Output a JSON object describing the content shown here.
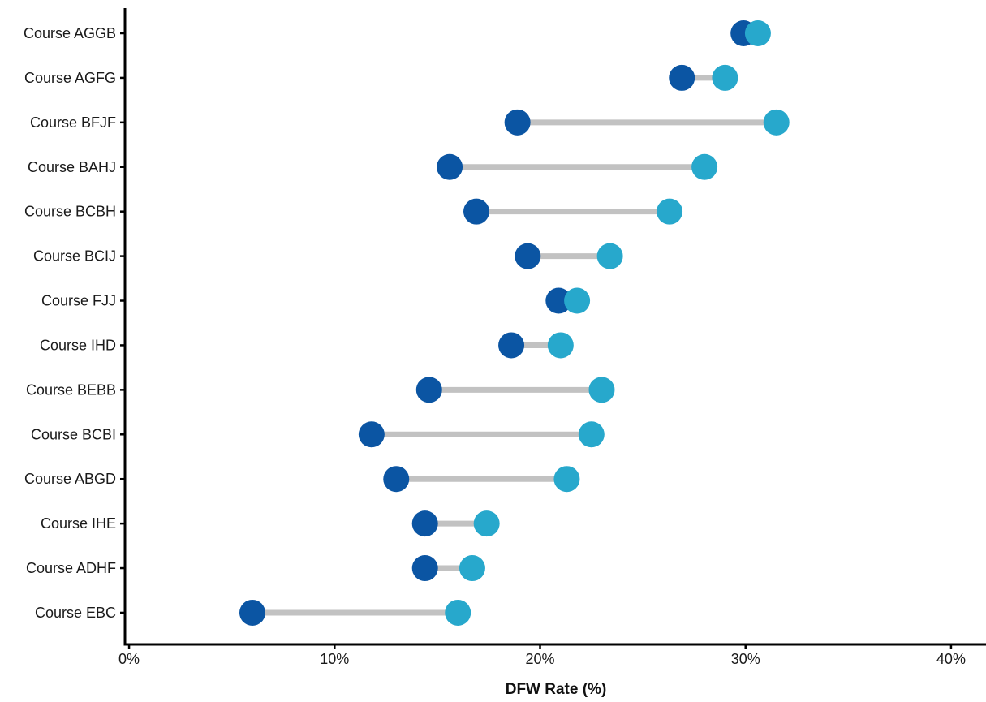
{
  "chart_data": {
    "type": "dumbbell",
    "xlabel": "DFW Rate (%)",
    "ylabel": "",
    "xlim": [
      -0.2,
      41.7
    ],
    "x_ticks": [
      0,
      10,
      20,
      30,
      40
    ],
    "x_tick_labels": [
      "0%",
      "10%",
      "20%",
      "30%",
      "40%"
    ],
    "grid": false,
    "legend": "none",
    "categories": [
      "Course AGGB",
      "Course AGFG",
      "Course BFJF",
      "Course BAHJ",
      "Course BCBH",
      "Course BCIJ",
      "Course FJJ",
      "Course IHD",
      "Course BEBB",
      "Course BCBI",
      "Course ABGD",
      "Course IHE",
      "Course ADHF",
      "Course EBC"
    ],
    "series": [
      {
        "values": [
          29.9,
          26.9,
          18.9,
          15.6,
          16.9,
          19.4,
          20.9,
          18.6,
          14.6,
          11.8,
          13.0,
          14.4,
          14.4,
          6.0
        ]
      },
      {
        "values": [
          30.6,
          29.0,
          31.5,
          28.0,
          26.3,
          23.4,
          21.8,
          21.0,
          23.0,
          22.5,
          21.3,
          17.4,
          16.7,
          16.0
        ]
      }
    ],
    "colors": {
      "low": "#0b55a3",
      "high": "#27a8cc",
      "connector": "#c2c2c2",
      "axis": "#000000"
    }
  }
}
